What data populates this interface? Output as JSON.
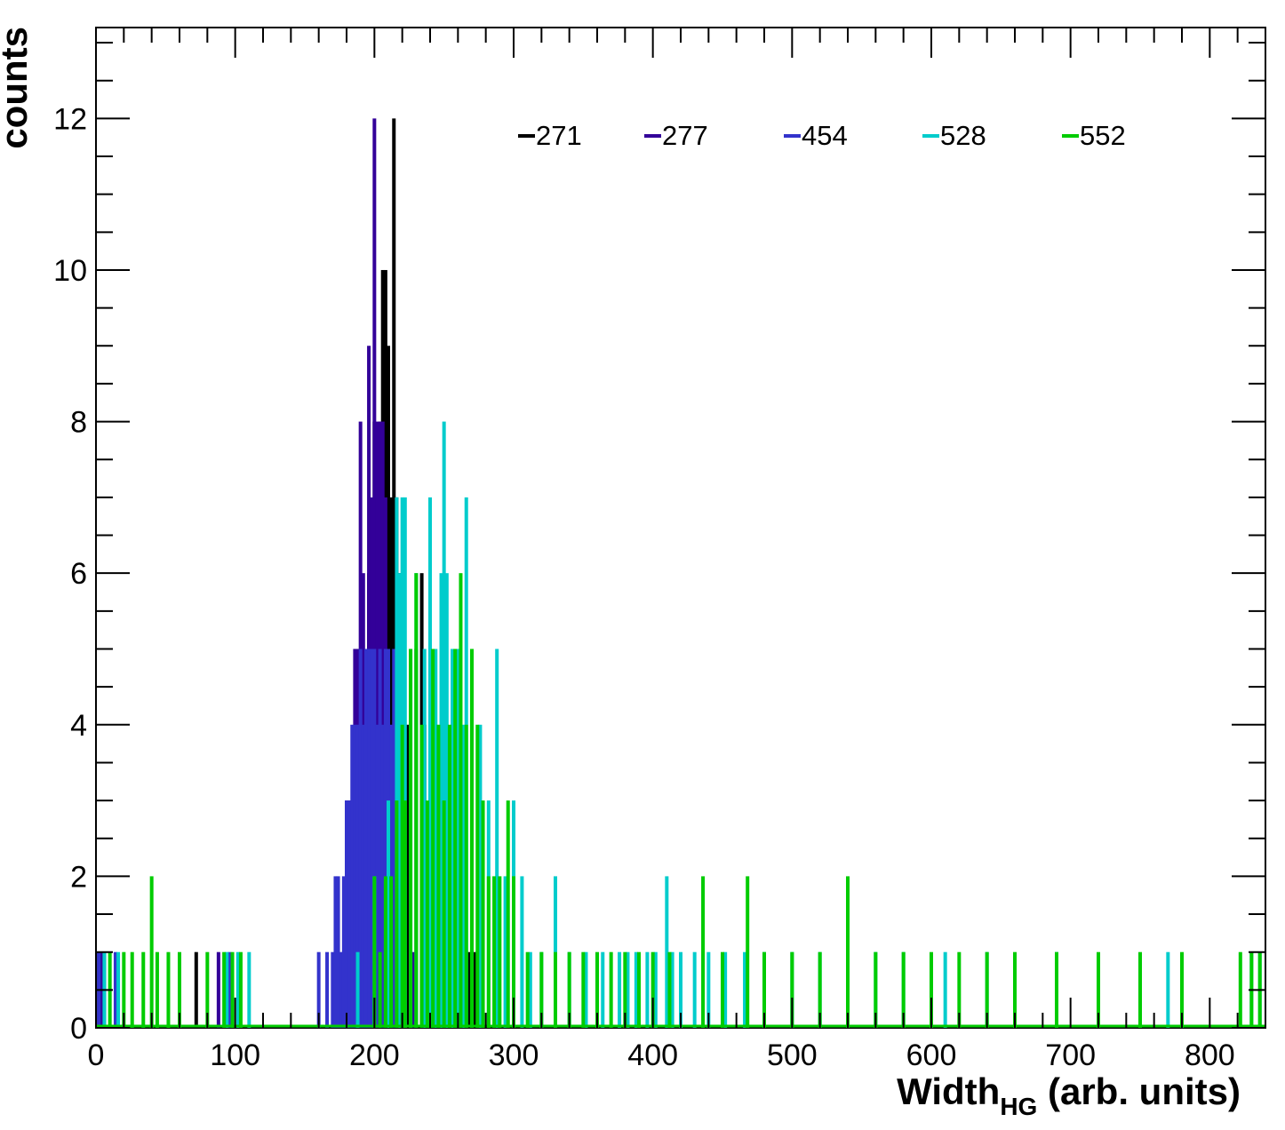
{
  "chart_data": {
    "type": "histogram",
    "xlabel": "Width",
    "xlabel_subscript": "HG",
    "xlabel_suffix": " (arb. units)",
    "ylabel": "counts",
    "xlim": [
      0,
      840
    ],
    "ylim": [
      0,
      13.2
    ],
    "x_ticks": [
      0,
      100,
      200,
      300,
      400,
      500,
      600,
      700,
      800
    ],
    "y_ticks": [
      0,
      2,
      4,
      6,
      8,
      10,
      12
    ],
    "grid": false,
    "legend_position": "top",
    "series": [
      {
        "name": "271",
        "color": "#000000",
        "x": [
          2,
          4,
          6,
          72,
          178,
          186,
          190,
          196,
          200,
          204,
          206,
          208,
          210,
          212,
          214,
          216,
          218,
          220,
          224,
          230,
          234,
          236,
          240,
          244,
          248,
          252,
          258,
          264,
          268,
          272
        ],
        "y": [
          1,
          1,
          1,
          1,
          1,
          3,
          5,
          6,
          8,
          8,
          10,
          10,
          9,
          7,
          12,
          7,
          6,
          5,
          4,
          5,
          6,
          4,
          6,
          4,
          3,
          4,
          2,
          2,
          1,
          1
        ]
      },
      {
        "name": "277",
        "color": "#330099",
        "x": [
          4,
          88,
          180,
          182,
          184,
          186,
          188,
          190,
          192,
          194,
          196,
          198,
          200,
          202,
          204,
          206,
          208,
          210,
          214,
          218,
          222,
          228,
          234,
          236,
          240
        ],
        "y": [
          1,
          1,
          3,
          3,
          3,
          5,
          5,
          8,
          6,
          5,
          9,
          7,
          12,
          8,
          8,
          8,
          7,
          5,
          4,
          3,
          2,
          1,
          1,
          1,
          1
        ]
      },
      {
        "name": "454",
        "color": "#3333cc",
        "x": [
          2,
          14,
          96,
          160,
          166,
          170,
          172,
          174,
          176,
          178,
          180,
          182,
          184,
          186,
          188,
          190,
          192,
          194,
          196,
          198,
          200,
          202,
          204,
          206,
          208,
          210,
          212,
          214,
          216,
          218,
          222,
          226,
          230
        ],
        "y": [
          1,
          1,
          1,
          1,
          1,
          1,
          2,
          2,
          1,
          2,
          3,
          3,
          4,
          4,
          4,
          5,
          4,
          5,
          5,
          5,
          5,
          4,
          5,
          4,
          5,
          5,
          4,
          5,
          3,
          2,
          1,
          1,
          1
        ]
      },
      {
        "name": "528",
        "color": "#00cccc",
        "x": [
          6,
          16,
          94,
          102,
          110,
          188,
          200,
          210,
          216,
          218,
          220,
          222,
          226,
          230,
          236,
          240,
          244,
          248,
          250,
          252,
          256,
          260,
          264,
          266,
          270,
          276,
          282,
          288,
          294,
          300,
          306,
          312,
          320,
          330,
          340,
          352,
          364,
          376,
          382,
          388,
          396,
          402,
          410,
          414,
          420,
          430,
          440,
          452,
          466,
          480,
          500,
          520,
          540,
          560,
          580,
          610,
          640,
          690,
          770,
          830,
          836
        ],
        "y": [
          1,
          1,
          1,
          1,
          1,
          1,
          2,
          3,
          7,
          6,
          7,
          7,
          5,
          6,
          5,
          7,
          5,
          6,
          8,
          6,
          5,
          5,
          4,
          7,
          3,
          4,
          3,
          5,
          2,
          3,
          2,
          1,
          1,
          2,
          1,
          1,
          1,
          1,
          1,
          1,
          1,
          1,
          2,
          1,
          1,
          1,
          1,
          1,
          1,
          1,
          1,
          1,
          1,
          1,
          1,
          1,
          1,
          1,
          1,
          1,
          1
        ]
      },
      {
        "name": "552",
        "color": "#00cc00",
        "x": [
          10,
          20,
          26,
          34,
          40,
          44,
          52,
          60,
          80,
          92,
          98,
          104,
          200,
          204,
          208,
          212,
          216,
          220,
          222,
          226,
          230,
          234,
          238,
          242,
          246,
          250,
          254,
          258,
          262,
          266,
          270,
          274,
          278,
          282,
          286,
          290,
          296,
          300,
          310,
          320,
          330,
          340,
          350,
          360,
          370,
          380,
          390,
          400,
          412,
          436,
          450,
          468,
          480,
          500,
          520,
          540,
          560,
          580,
          600,
          620,
          640,
          660,
          690,
          720,
          750,
          780,
          822,
          830,
          836
        ],
        "y": [
          1,
          1,
          1,
          1,
          2,
          1,
          1,
          1,
          1,
          1,
          1,
          1,
          2,
          1,
          2,
          2,
          3,
          4,
          3,
          5,
          6,
          4,
          3,
          5,
          4,
          3,
          4,
          5,
          6,
          4,
          5,
          4,
          3,
          2,
          2,
          2,
          3,
          2,
          1,
          1,
          1,
          1,
          1,
          1,
          1,
          1,
          1,
          1,
          1,
          2,
          1,
          2,
          1,
          1,
          1,
          2,
          1,
          1,
          1,
          1,
          1,
          1,
          1,
          1,
          1,
          1,
          1,
          1,
          1
        ]
      }
    ]
  }
}
